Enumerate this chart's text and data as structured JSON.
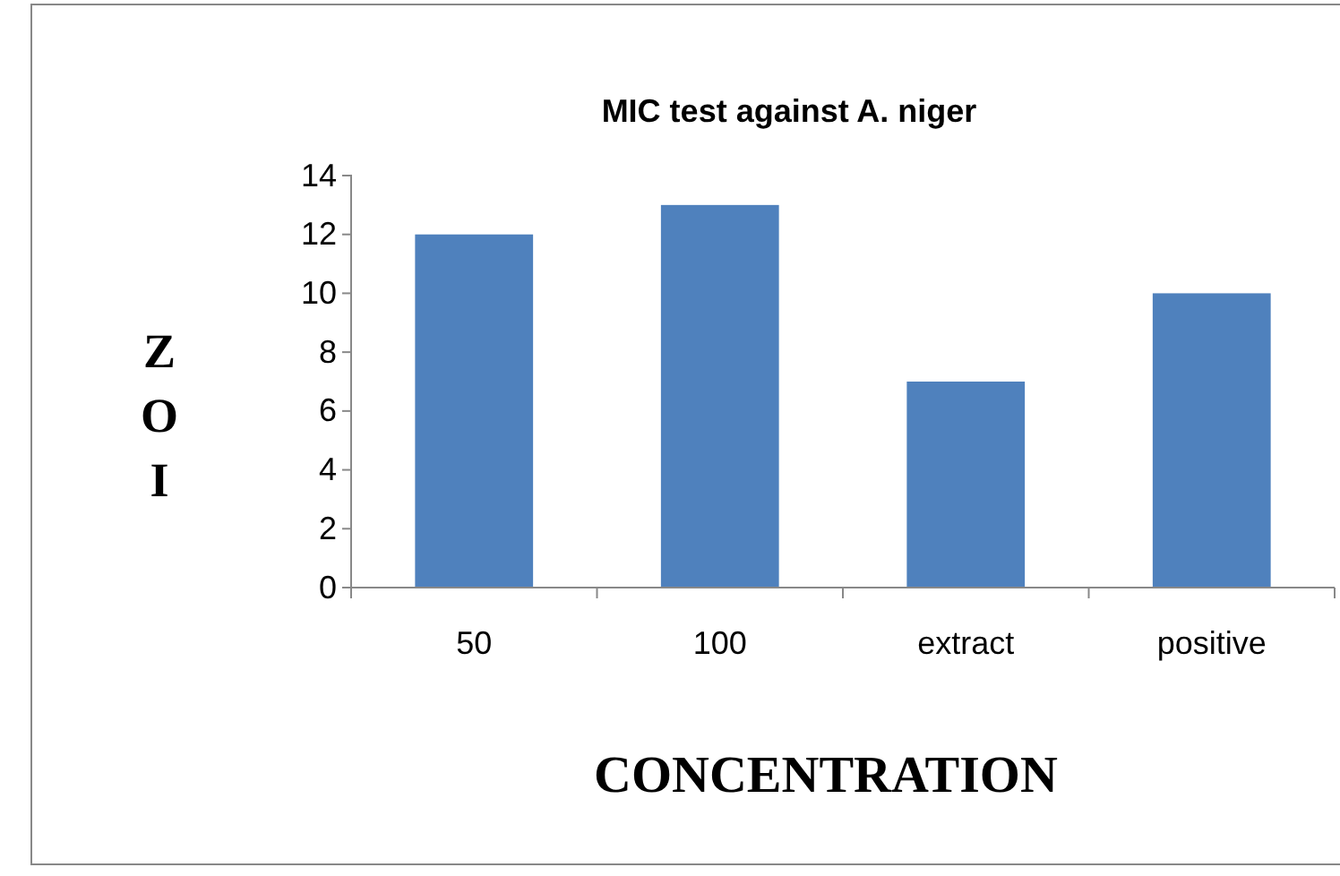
{
  "chart_data": {
    "type": "bar",
    "title": "MIC test against A. niger",
    "xlabel": "CONCENTRATION",
    "ylabel": "ZOI",
    "categories": [
      "50",
      "100",
      "extract",
      "positive"
    ],
    "values": [
      12,
      13,
      7,
      10
    ],
    "color": "#4f81bd",
    "ylim": [
      0,
      14
    ],
    "yticks": [
      0,
      2,
      4,
      6,
      8,
      10,
      12,
      14
    ],
    "grid": false
  }
}
